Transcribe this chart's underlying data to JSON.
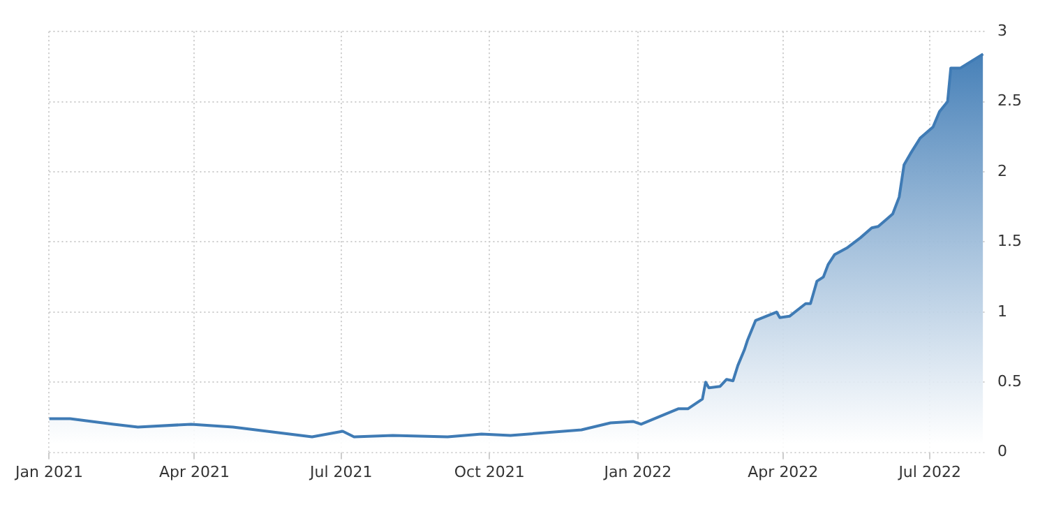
{
  "chart_data": {
    "type": "area",
    "x": [
      "2021-01-01",
      "2021-01-14",
      "2021-02-10",
      "2021-02-25",
      "2021-03-30",
      "2021-04-25",
      "2021-05-23",
      "2021-06-13",
      "2021-07-02",
      "2021-07-09",
      "2021-08-02",
      "2021-09-05",
      "2021-09-26",
      "2021-10-14",
      "2021-11-27",
      "2021-12-15",
      "2021-12-29",
      "2022-01-03",
      "2022-01-26",
      "2022-02-01",
      "2022-02-10",
      "2022-02-12",
      "2022-02-14",
      "2022-02-21",
      "2022-02-25",
      "2022-03-01",
      "2022-03-04",
      "2022-03-08",
      "2022-03-10",
      "2022-03-15",
      "2022-03-28",
      "2022-03-30",
      "2022-04-05",
      "2022-04-15",
      "2022-04-18",
      "2022-04-22",
      "2022-04-26",
      "2022-04-29",
      "2022-05-03",
      "2022-05-11",
      "2022-05-19",
      "2022-05-26",
      "2022-05-30",
      "2022-06-08",
      "2022-06-12",
      "2022-06-15",
      "2022-06-19",
      "2022-06-25",
      "2022-07-03",
      "2022-07-07",
      "2022-07-12",
      "2022-07-14",
      "2022-07-20",
      "2022-07-27",
      "2022-08-03"
    ],
    "series": [
      {
        "color": "#3f7bb5",
        "values": [
          0.24,
          0.24,
          0.2,
          0.18,
          0.2,
          0.18,
          0.14,
          0.11,
          0.15,
          0.11,
          0.12,
          0.11,
          0.13,
          0.12,
          0.16,
          0.21,
          0.22,
          0.2,
          0.31,
          0.31,
          0.38,
          0.5,
          0.46,
          0.47,
          0.52,
          0.51,
          0.62,
          0.73,
          0.8,
          0.94,
          1.0,
          0.96,
          0.97,
          1.06,
          1.06,
          1.22,
          1.25,
          1.34,
          1.41,
          1.46,
          1.53,
          1.6,
          1.61,
          1.7,
          1.82,
          2.05,
          2.13,
          2.24,
          2.32,
          2.43,
          2.5,
          2.74,
          2.74,
          2.79,
          2.84
        ]
      }
    ],
    "xlim": [
      "2021-01-01",
      "2022-08-05"
    ],
    "xticks": [
      {
        "value": "2021-01-01",
        "label": "Jan 2021"
      },
      {
        "value": "2021-04-01",
        "label": "Apr 2021"
      },
      {
        "value": "2021-07-01",
        "label": "Jul 2021"
      },
      {
        "value": "2021-10-01",
        "label": "Oct 2021"
      },
      {
        "value": "2022-01-01",
        "label": "Jan 2022"
      },
      {
        "value": "2022-04-01",
        "label": "Apr 2022"
      },
      {
        "value": "2022-07-01",
        "label": "Jul 2022"
      }
    ],
    "ylim": [
      0,
      3
    ],
    "yticks": [
      0,
      0.5,
      1,
      1.5,
      2,
      2.5,
      3
    ],
    "grid": true,
    "legend": false,
    "marker": "none",
    "line_style": "solid"
  }
}
